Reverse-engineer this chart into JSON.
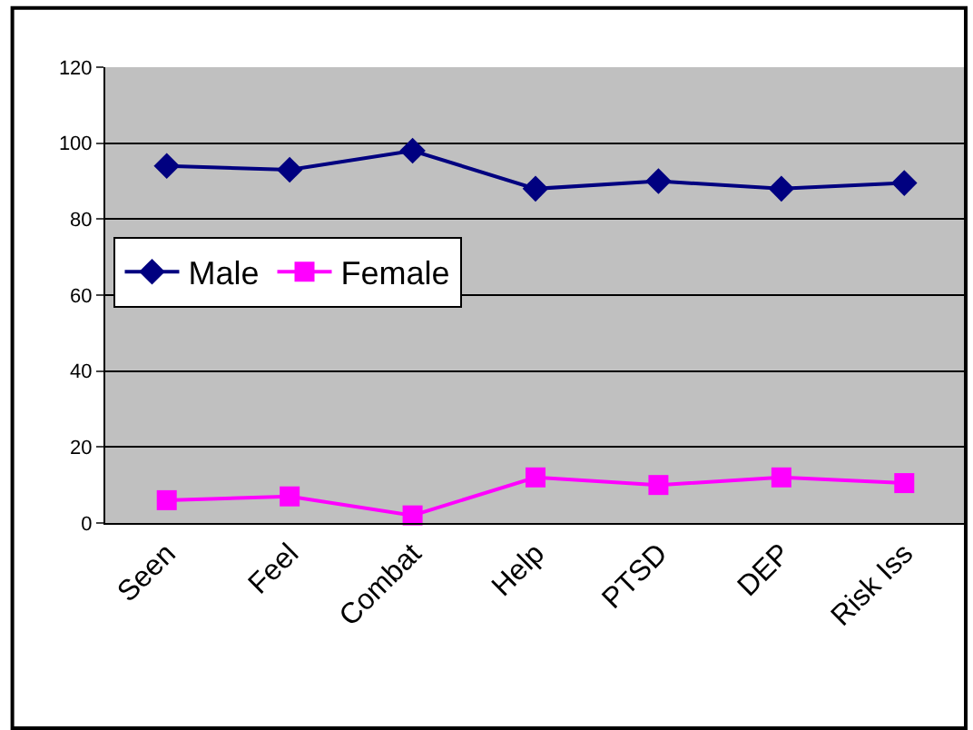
{
  "chart_data": {
    "type": "line",
    "categories": [
      "Seen",
      "Feel",
      "Combat",
      "Help",
      "PTSD",
      "DEP",
      "Risk Iss"
    ],
    "series": [
      {
        "name": "Male",
        "color": "#000080",
        "marker": "diamond",
        "values": [
          94,
          93,
          98,
          88,
          90,
          88,
          89.5
        ]
      },
      {
        "name": "Female",
        "color": "#ff00ff",
        "marker": "square",
        "values": [
          6,
          7,
          2,
          12,
          10,
          12,
          10.5
        ]
      }
    ],
    "ylim": [
      0,
      120
    ],
    "yticks": [
      0,
      20,
      40,
      60,
      80,
      100,
      120
    ],
    "grid": "y",
    "legend": "left",
    "line_style": "solid"
  }
}
